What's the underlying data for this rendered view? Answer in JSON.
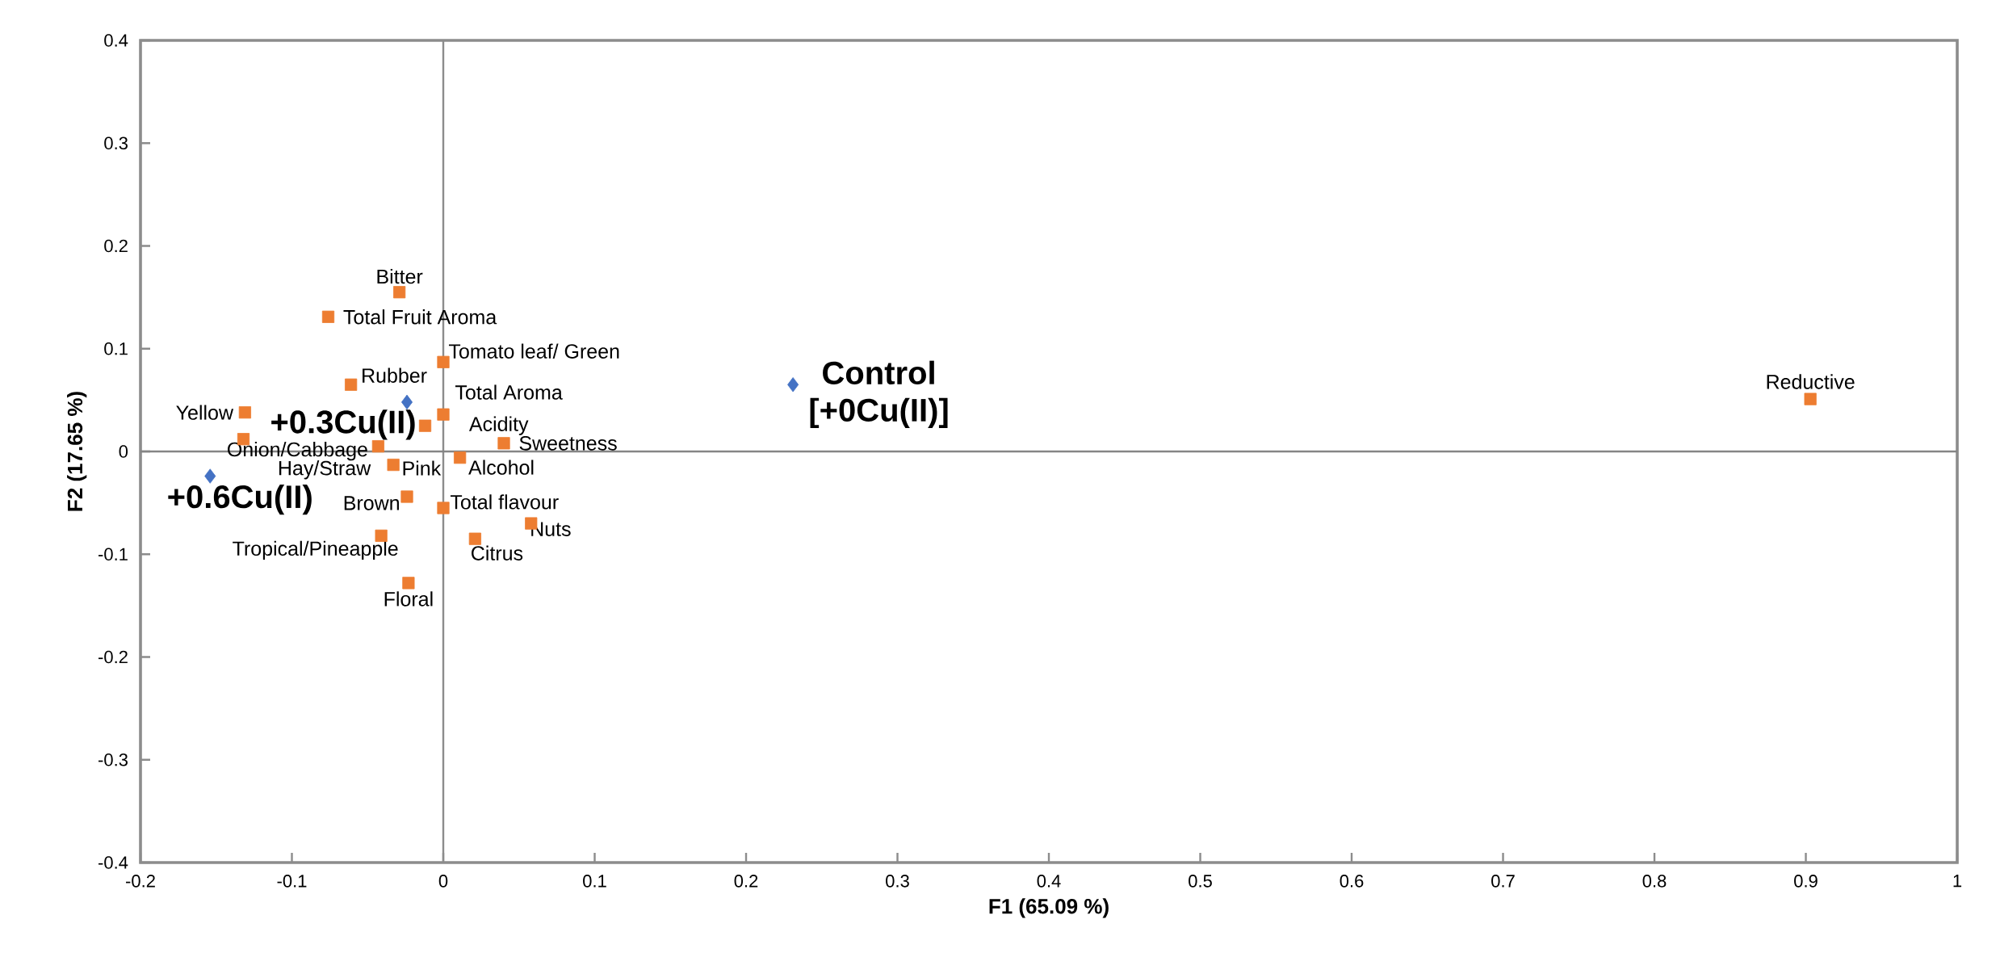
{
  "chart_data": {
    "type": "scatter",
    "xlabel": "F1 (65.09 %)",
    "ylabel": "F2 (17.65 %)",
    "xlim": [
      -0.2,
      1
    ],
    "ylim": [
      -0.4,
      0.4
    ],
    "xticks": [
      -0.2,
      -0.1,
      0,
      0.1,
      0.2,
      0.3,
      0.4,
      0.5,
      0.6,
      0.7,
      0.8,
      0.9,
      1
    ],
    "yticks": [
      -0.4,
      -0.3,
      -0.2,
      -0.1,
      0,
      0.1,
      0.2,
      0.3,
      0.4
    ],
    "grid": false,
    "ref_lines": [
      {
        "axis": "x",
        "value": 0,
        "color": "#8c8c8c"
      },
      {
        "axis": "y",
        "value": 0,
        "color": "#858585"
      }
    ],
    "series": [
      {
        "color": "#ed7d31",
        "marker": "square",
        "x": [
          -0.029,
          -0.076,
          0.0,
          -0.061,
          0.0,
          -0.012,
          -0.131,
          -0.043,
          -0.132,
          -0.033,
          0.04,
          0.011,
          -0.024,
          0.0,
          0.058,
          0.021,
          -0.041,
          -0.023,
          0.903
        ],
        "values": [
          0.155,
          0.131,
          0.087,
          0.065,
          0.036,
          0.025,
          0.038,
          0.005,
          0.012,
          -0.013,
          0.008,
          -0.006,
          -0.044,
          -0.055,
          -0.07,
          -0.085,
          -0.082,
          -0.128,
          0.051
        ]
      },
      {
        "color": "#4472c4",
        "marker": "diamond",
        "x": [
          0.231,
          -0.024,
          -0.154
        ],
        "values": [
          0.065,
          0.048,
          -0.024
        ]
      }
    ],
    "annotations": [
      {
        "text": "Bitter",
        "x": -0.029,
        "y": 0.155
      },
      {
        "text": "Total Fruit Aroma",
        "x": -0.076,
        "y": 0.131
      },
      {
        "text": "Tomato leaf/ Green",
        "x": 0.0,
        "y": 0.087
      },
      {
        "text": "Rubber",
        "x": -0.061,
        "y": 0.065
      },
      {
        "text": "Total Aroma",
        "x": 0.0,
        "y": 0.036
      },
      {
        "text": "Acidity",
        "x": -0.012,
        "y": 0.025
      },
      {
        "text": "Yellow",
        "x": -0.131,
        "y": 0.038
      },
      {
        "text": "Onion/Cabbage",
        "x": -0.043,
        "y": 0.005
      },
      {
        "text": "Hay/Straw",
        "x": -0.132,
        "y": 0.012
      },
      {
        "text": "Pink",
        "x": -0.033,
        "y": -0.013
      },
      {
        "text": "Sweetness",
        "x": 0.04,
        "y": 0.008
      },
      {
        "text": "Alcohol",
        "x": 0.011,
        "y": -0.006
      },
      {
        "text": "Brown",
        "x": -0.024,
        "y": -0.044
      },
      {
        "text": "Total flavour",
        "x": 0.0,
        "y": -0.055
      },
      {
        "text": "Nuts",
        "x": 0.058,
        "y": -0.07
      },
      {
        "text": "Citrus",
        "x": 0.021,
        "y": -0.085
      },
      {
        "text": "Tropical/Pineapple",
        "x": -0.041,
        "y": -0.082
      },
      {
        "text": "Floral",
        "x": -0.023,
        "y": -0.128
      },
      {
        "text": "Reductive",
        "x": 0.903,
        "y": 0.051
      },
      {
        "text": "Control [+0Cu(II)]",
        "x": 0.231,
        "y": 0.065
      },
      {
        "text": "+0.3Cu(II)",
        "x": -0.024,
        "y": 0.048
      },
      {
        "text": "+0.6Cu(II)",
        "x": -0.154,
        "y": -0.024
      }
    ]
  }
}
